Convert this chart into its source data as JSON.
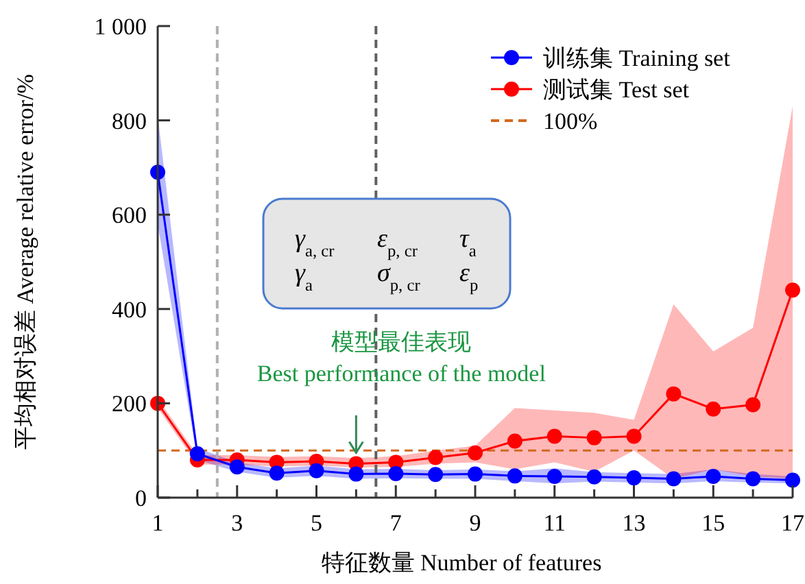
{
  "chart_data": {
    "type": "line",
    "xlabel": "特征数量 Number of features",
    "ylabel": "平均相对误差 Average relative error/%",
    "x": [
      1,
      2,
      3,
      4,
      5,
      6,
      7,
      8,
      9,
      10,
      11,
      12,
      13,
      14,
      15,
      16,
      17
    ],
    "series": [
      {
        "name": "训练集 Training set",
        "color": "#0000ff",
        "values": [
          690,
          93,
          65,
          52,
          57,
          50,
          51,
          49,
          50,
          46,
          45,
          44,
          42,
          40,
          45,
          40,
          37
        ],
        "lower": [
          580,
          80,
          55,
          42,
          46,
          40,
          41,
          40,
          40,
          35,
          30,
          34,
          32,
          30,
          35,
          32,
          30
        ],
        "upper": [
          810,
          105,
          75,
          62,
          68,
          60,
          61,
          58,
          60,
          56,
          62,
          54,
          52,
          50,
          60,
          50,
          45
        ]
      },
      {
        "name": "测试集 Test set",
        "color": "#ff0000",
        "values": [
          200,
          80,
          80,
          75,
          77,
          72,
          75,
          85,
          95,
          120,
          130,
          127,
          130,
          220,
          188,
          197,
          440
        ],
        "lower": [
          190,
          70,
          70,
          66,
          68,
          64,
          65,
          72,
          75,
          60,
          75,
          55,
          100,
          40,
          60,
          45,
          40
        ],
        "upper": [
          210,
          90,
          90,
          86,
          88,
          84,
          88,
          100,
          110,
          190,
          185,
          180,
          165,
          410,
          310,
          360,
          830
        ]
      }
    ],
    "ref_lines": [
      {
        "axis": "y",
        "value": 100,
        "label": "100%",
        "color": "#d2691e",
        "line_style": "dashed"
      },
      {
        "axis": "x",
        "value": 2.5,
        "color": "#b0b0b0",
        "line_style": "dashed"
      },
      {
        "axis": "x",
        "value": 6.5,
        "color": "#606060",
        "line_style": "dashed"
      }
    ],
    "annotations": [
      "γ$_{a, cr}$",
      "ε$_{p, cr}$",
      "τ$_{a}$",
      "γ$_{a}$",
      "σ$_{p, cr}$",
      "ε$_{p}$",
      "模型最佳表现",
      {
        "text": "Best performance of the model",
        "x": 6,
        "y": 72
      }
    ],
    "xlim": [
      1,
      17
    ],
    "ylim": [
      0,
      1000
    ],
    "xticks": [
      1,
      {
        "value": 2,
        "label": null
      },
      3,
      {
        "value": 4,
        "label": null
      },
      5,
      {
        "value": 6,
        "label": null
      },
      7,
      {
        "value": 8,
        "label": null
      },
      9,
      {
        "value": 10,
        "label": null
      },
      11,
      {
        "value": 12,
        "label": null
      },
      13,
      {
        "value": 14,
        "label": null
      },
      15,
      {
        "value": 16,
        "label": null
      },
      17
    ],
    "yticks": [
      0,
      200,
      400,
      600,
      800,
      {
        "value": 1000,
        "label": "1 000"
      }
    ],
    "grid": false,
    "legend": "top right",
    "marker": "circle",
    "line_style": "solid"
  }
}
